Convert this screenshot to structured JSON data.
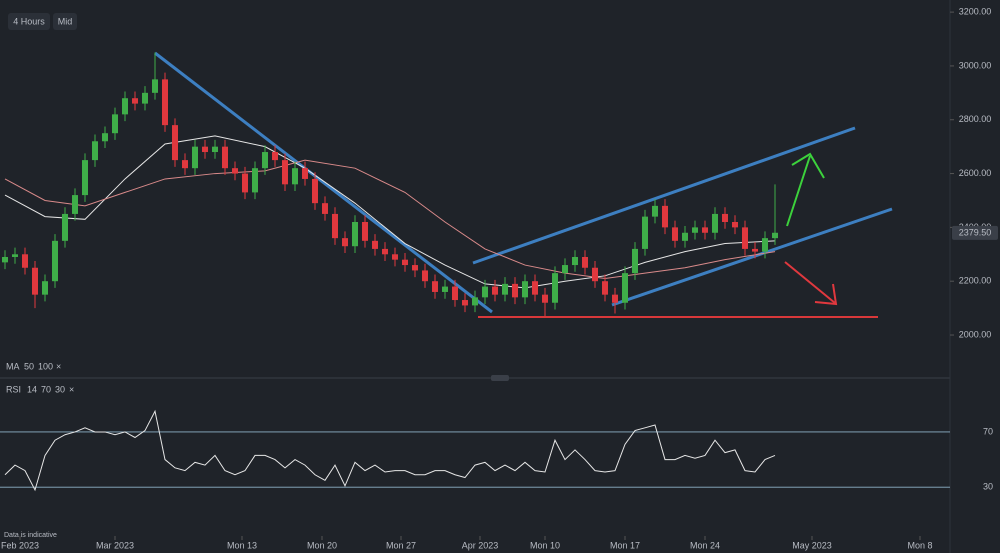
{
  "toolbar": {
    "timeframe": "4 Hours",
    "price_type": "Mid"
  },
  "footer": "Data is indicative",
  "chart_data": [
    {
      "type": "candlestick",
      "up_color": "#3fae49",
      "down_color": "#e0383e",
      "x": [
        0,
        1,
        2,
        3,
        4,
        5,
        6,
        7,
        8,
        9,
        10,
        11,
        12,
        13,
        14,
        15,
        16,
        17,
        18,
        19,
        20,
        21,
        22,
        23,
        24,
        25,
        26,
        27,
        28,
        29,
        30,
        31,
        32,
        33,
        34,
        35,
        36,
        37,
        38,
        39,
        40,
        41,
        42,
        43,
        44,
        45,
        46,
        47,
        48,
        49,
        50,
        51,
        52,
        53,
        54,
        55,
        56,
        57,
        58,
        59,
        60,
        61,
        62,
        63,
        64,
        65,
        66,
        67,
        68,
        69,
        70,
        71,
        72,
        73,
        74,
        75,
        76,
        77
      ],
      "open": [
        2270,
        2290,
        2300,
        2250,
        2150,
        2200,
        2350,
        2450,
        2520,
        2650,
        2720,
        2750,
        2820,
        2880,
        2860,
        2900,
        2950,
        2780,
        2650,
        2620,
        2700,
        2680,
        2700,
        2620,
        2600,
        2530,
        2620,
        2680,
        2650,
        2560,
        2620,
        2580,
        2490,
        2450,
        2360,
        2330,
        2420,
        2350,
        2320,
        2300,
        2280,
        2260,
        2240,
        2200,
        2160,
        2180,
        2130,
        2110,
        2140,
        2180,
        2150,
        2190,
        2140,
        2200,
        2150,
        2120,
        2230,
        2260,
        2290,
        2250,
        2200,
        2150,
        2120,
        2230,
        2320,
        2440,
        2480,
        2400,
        2350,
        2380,
        2400,
        2380,
        2450,
        2420,
        2400,
        2320,
        2310,
        2360
      ],
      "high": [
        2315,
        2325,
        2325,
        2275,
        2225,
        2375,
        2475,
        2545,
        2675,
        2745,
        2775,
        2845,
        2905,
        2905,
        2925,
        3050,
        2975,
        2805,
        2675,
        2725,
        2725,
        2725,
        2725,
        2645,
        2625,
        2645,
        2705,
        2705,
        2675,
        2645,
        2645,
        2605,
        2515,
        2475,
        2385,
        2445,
        2445,
        2375,
        2345,
        2325,
        2305,
        2285,
        2265,
        2225,
        2205,
        2205,
        2155,
        2165,
        2205,
        2205,
        2215,
        2215,
        2225,
        2225,
        2175,
        2255,
        2285,
        2315,
        2315,
        2275,
        2225,
        2175,
        2255,
        2345,
        2465,
        2505,
        2505,
        2425,
        2405,
        2425,
        2425,
        2475,
        2475,
        2445,
        2425,
        2345,
        2385,
        2560
      ],
      "low": [
        2245,
        2265,
        2225,
        2100,
        2125,
        2175,
        2325,
        2425,
        2495,
        2625,
        2695,
        2725,
        2795,
        2835,
        2835,
        2875,
        2755,
        2625,
        2595,
        2595,
        2655,
        2655,
        2595,
        2575,
        2505,
        2505,
        2595,
        2625,
        2535,
        2535,
        2555,
        2465,
        2425,
        2335,
        2305,
        2305,
        2325,
        2295,
        2275,
        2255,
        2235,
        2215,
        2175,
        2135,
        2135,
        2105,
        2085,
        2085,
        2115,
        2125,
        2125,
        2115,
        2115,
        2125,
        2070,
        2095,
        2205,
        2235,
        2225,
        2175,
        2125,
        2080,
        2095,
        2205,
        2295,
        2415,
        2375,
        2325,
        2325,
        2355,
        2355,
        2355,
        2395,
        2375,
        2295,
        2285,
        2285,
        2335
      ],
      "close": [
        2290,
        2300,
        2250,
        2150,
        2200,
        2350,
        2450,
        2520,
        2650,
        2720,
        2750,
        2820,
        2880,
        2860,
        2900,
        2950,
        2780,
        2650,
        2620,
        2700,
        2680,
        2700,
        2620,
        2600,
        2530,
        2620,
        2680,
        2650,
        2560,
        2620,
        2580,
        2490,
        2450,
        2360,
        2330,
        2420,
        2350,
        2320,
        2300,
        2280,
        2260,
        2240,
        2200,
        2160,
        2180,
        2130,
        2110,
        2140,
        2180,
        2150,
        2190,
        2140,
        2200,
        2150,
        2120,
        2230,
        2260,
        2290,
        2250,
        2200,
        2150,
        2120,
        2230,
        2320,
        2440,
        2480,
        2400,
        2350,
        2380,
        2400,
        2380,
        2450,
        2420,
        2400,
        2320,
        2310,
        2360,
        2380
      ],
      "legend_title": "MA",
      "legend_close": "×",
      "series": [
        {
          "name": "50",
          "color": "#e6e6e6",
          "x": [
            0,
            4,
            8,
            12,
            16,
            21,
            26,
            30,
            35,
            40,
            44,
            48,
            52,
            56,
            60,
            64,
            68,
            72,
            77
          ],
          "values": [
            2520,
            2440,
            2430,
            2580,
            2710,
            2740,
            2700,
            2620,
            2490,
            2340,
            2260,
            2190,
            2175,
            2200,
            2220,
            2270,
            2310,
            2340,
            2350
          ]
        },
        {
          "name": "100",
          "color": "#d98a8a",
          "x": [
            0,
            4,
            8,
            12,
            16,
            21,
            26,
            30,
            35,
            40,
            44,
            48,
            52,
            56,
            60,
            64,
            68,
            72,
            77
          ],
          "values": [
            2580,
            2500,
            2480,
            2530,
            2580,
            2600,
            2610,
            2650,
            2620,
            2530,
            2420,
            2320,
            2260,
            2230,
            2210,
            2230,
            2250,
            2280,
            2310
          ]
        }
      ],
      "last_price": {
        "value": 2379.5,
        "label": "2379.50"
      },
      "xlim": [
        -0.5,
        94.5
      ],
      "xticks": [
        {
          "value": 1.5,
          "label": "Feb 2023"
        },
        {
          "value": 11,
          "label": "Mar 2023"
        },
        {
          "value": 23.7,
          "label": "Mon 13"
        },
        {
          "value": 31.7,
          "label": "Mon 20"
        },
        {
          "value": 39.6,
          "label": "Mon 27"
        },
        {
          "value": 47.5,
          "label": "Apr 2023"
        },
        {
          "value": 54,
          "label": "Mon 10"
        },
        {
          "value": 62,
          "label": "Mon 17"
        },
        {
          "value": 70,
          "label": "Mon 24"
        },
        {
          "value": 80.7,
          "label": "May 2023"
        },
        {
          "value": 91.5,
          "label": "Mon 8"
        }
      ],
      "ylim": [
        1870,
        3245
      ],
      "yticks": [
        {
          "value": 2000,
          "label": "2000.00"
        },
        {
          "value": 2200,
          "label": "2200.00"
        },
        {
          "value": 2400,
          "label": "2400.00"
        },
        {
          "value": 2600,
          "label": "2600.00"
        },
        {
          "value": 2800,
          "label": "2800.00"
        },
        {
          "value": 3000,
          "label": "3000.00"
        },
        {
          "value": 3200,
          "label": "3200.00"
        }
      ]
    },
    {
      "type": "line",
      "legend_title": "RSI",
      "params": [
        14,
        70,
        30
      ],
      "legend_close": "×",
      "color": "#e6e6e6",
      "x": [
        0,
        1,
        2,
        3,
        4,
        5,
        6,
        7,
        8,
        9,
        10,
        11,
        12,
        13,
        14,
        15,
        16,
        17,
        18,
        19,
        20,
        21,
        22,
        23,
        24,
        25,
        26,
        27,
        28,
        29,
        30,
        31,
        32,
        33,
        34,
        35,
        36,
        37,
        38,
        39,
        40,
        41,
        42,
        43,
        44,
        45,
        46,
        47,
        48,
        49,
        50,
        51,
        52,
        53,
        54,
        55,
        56,
        57,
        58,
        59,
        60,
        61,
        62,
        63,
        64,
        65,
        66,
        67,
        68,
        69,
        70,
        71,
        72,
        73,
        74,
        75,
        76,
        77
      ],
      "values": [
        39,
        46,
        42,
        28,
        53,
        64,
        68,
        70,
        73,
        70,
        70,
        68,
        70,
        66,
        71,
        85,
        50,
        44,
        42,
        48,
        46,
        53,
        42,
        39,
        42,
        53,
        53,
        50,
        44,
        50,
        46,
        39,
        35,
        46,
        31,
        48,
        42,
        46,
        41,
        42,
        42,
        39,
        39,
        42,
        42,
        39,
        37,
        46,
        48,
        42,
        46,
        42,
        48,
        42,
        41,
        64,
        50,
        57,
        50,
        42,
        41,
        42,
        61,
        71,
        73,
        75,
        50,
        50,
        53,
        51,
        53,
        64,
        55,
        57,
        42,
        41,
        50,
        53
      ],
      "ylim": [
        -1,
        104
      ],
      "yticks": [
        70,
        30
      ],
      "grid": true
    }
  ]
}
